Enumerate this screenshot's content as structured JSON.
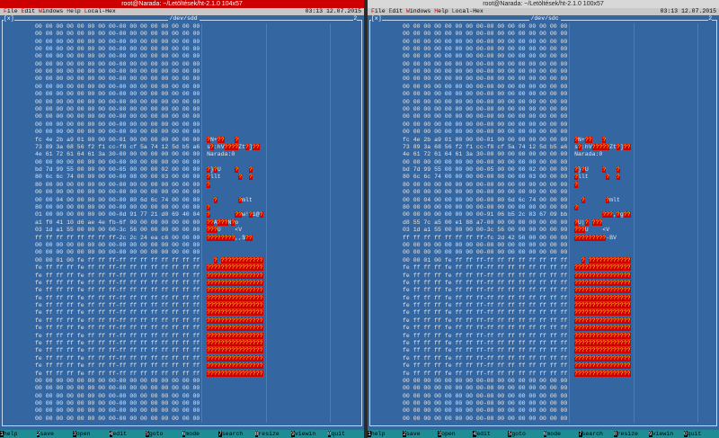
{
  "panes": [
    {
      "title": "root@Narada: ~/Letöltések/ht-2.1.0 104x57",
      "menu": [
        "File",
        "Edit",
        "Windows",
        "Help",
        "Local-Hex"
      ],
      "clock": "03:13 12.07.2015",
      "window_close": "[x]",
      "window_title": "/dev/sdd",
      "window_number": "2",
      "rows": [
        {
          "hex": "00 00 00 00 00 00 00 00-00 00 00 00 00 00 00 00"
        },
        {
          "hex": "00 00 00 00 00 00 00 00-00 00 00 00 00 00 00 00"
        },
        {
          "hex": "00 00 00 00 00 00 00 00-00 00 00 00 00 00 00 00"
        },
        {
          "hex": "00 00 00 00 00 00 00 00-00 00 00 00 00 00 00 00"
        },
        {
          "hex": "00 00 00 00 00 00 00 00-00 00 00 00 00 00 00 00"
        },
        {
          "hex": "00 00 00 00 00 00 00 00-00 00 00 00 00 00 00 00"
        },
        {
          "hex": "00 00 00 00 00 00 00 00-00 00 00 00 00 00 00 00"
        },
        {
          "hex": "00 00 00 00 00 00 00 00-00 00 00 00 00 00 00 00"
        },
        {
          "hex": "00 00 00 00 00 00 00 00-00 00 00 00 00 00 00 00"
        },
        {
          "hex": "00 00 00 00 00 00 00 00-00 00 00 00 00 00 00 00"
        },
        {
          "hex": "00 00 00 00 00 00 00 00-00 00 00 00 00 00 00 00"
        },
        {
          "hex": "00 00 00 00 00 00 00 00-00 00 00 00 00 00 00 00"
        },
        {
          "hex": "00 00 00 00 00 00 00 00-00 00 00 00 00 00 00 00"
        },
        {
          "hex": "00 00 00 00 00 00 00 00-00 00 00 00 00 00 00 00"
        },
        {
          "hex": "00 00 00 00 00 00 00 00-00 00 00 00 00 00 00 00"
        },
        {
          "hex": "fc 4e 2b a9 01 00 00 00-01 00 00 00 00 00 00 00",
          "ascii": "?N+??   ?"
        },
        {
          "hex": "73 89 3a 68 56 f2 f1 cc-f8 cf 5a 74 12 5d b5 a6",
          "ascii": "s?:hV????Zt?]??"
        },
        {
          "hex": "4e 61 72 61 64 61 3a 30-00 00 00 00 00 00 00 00",
          "ascii": "Narada:0"
        },
        {
          "hex": "00 00 00 00 00 00 00 00-00 00 00 00 00 00 00 00"
        },
        {
          "hex": "bd 7d 99 55 00 00 00 00-05 00 00 00 02 00 00 00",
          "ascii": "?}?U    ?   ?"
        },
        {
          "hex": "80 6c 6c 74 00 00 00 00-00 08 00 00 03 00 00 00",
          "ascii": "?llt     ?  ?"
        },
        {
          "hex": "80 00 00 00 00 00 00 00-00 00 00 00 00 00 00 00",
          "ascii": "?"
        },
        {
          "hex": "00 00 00 00 00 00 00 00-00 00 00 00 00 00 00 00"
        },
        {
          "hex": "00 00 04 00 00 00 00 00-00 80 6d 6c 74 00 00 00",
          "ascii": "  ?      ?mlt"
        },
        {
          "hex": "80 00 00 00 00 00 00 00-00 00 00 00 00 00 00 00",
          "ascii": "?"
        },
        {
          "hex": "01 00 00 00 00 00 00 00-0d 91 77 21 d0 69 40 04",
          "ascii": "?       ??w!?i@?"
        },
        {
          "hex": "a1 f0 41 10 d6 ae 4e fb-6f 00 00 00 00 00 00 00",
          "ascii": "??A???N?o"
        },
        {
          "hex": "03 1d a1 55 00 00 00 00-3c 56 00 00 00 00 00 00",
          "ascii": "???U    <V"
        },
        {
          "hex": "ff ff ff ff ff ff ff ff-2c 2c 24 ea c6 00 00 00",
          "ascii": "????????,,$??"
        },
        {
          "hex": "00 00 00 00 00 00 00 00-00 00 00 00 00 00 00 00"
        },
        {
          "hex": "00 00 00 00 00 00 00 00-00 00 00 00 00 00 00 00"
        },
        {
          "hex": "00 00 01 00 fe ff ff ff-ff ff ff ff ff ff ff ff",
          "ascii": "  ? ????????????"
        },
        {
          "hex": "fe ff ff ff fe ff ff ff-ff ff ff ff ff ff ff ff",
          "ascii": "????????????????"
        },
        {
          "hex": "fe ff ff ff fe ff ff ff-ff ff ff ff ff ff ff ff",
          "ascii": "????????????????"
        },
        {
          "hex": "fe ff ff ff fe ff ff ff-ff ff ff ff ff ff ff ff",
          "ascii": "????????????????"
        },
        {
          "hex": "fe ff ff ff fe ff ff ff-ff ff ff ff ff ff ff ff",
          "ascii": "????????????????"
        },
        {
          "hex": "fe ff ff ff fe ff ff ff-ff ff ff ff ff ff ff ff",
          "ascii": "????????????????"
        },
        {
          "hex": "fe ff ff ff fe ff ff ff-ff ff ff ff ff ff ff ff",
          "ascii": "????????????????"
        },
        {
          "hex": "fe ff ff ff fe ff ff ff-ff ff ff ff ff ff ff ff",
          "ascii": "????????????????"
        },
        {
          "hex": "fe ff ff ff fe ff ff ff-ff ff ff ff ff ff ff ff",
          "ascii": "????????????????"
        },
        {
          "hex": "fe ff ff ff fe ff ff ff-ff ff ff ff ff ff ff ff",
          "ascii": "????????????????"
        },
        {
          "hex": "fe ff ff ff fe ff ff ff-ff ff ff ff ff ff ff ff",
          "ascii": "????????????????"
        },
        {
          "hex": "fe ff ff ff fe ff ff ff-ff ff ff ff ff ff ff ff",
          "ascii": "????????????????"
        },
        {
          "hex": "fe ff ff ff fe ff ff ff-ff ff ff ff ff ff ff ff",
          "ascii": "????????????????"
        },
        {
          "hex": "fe ff ff ff fe ff ff ff-ff ff ff ff ff ff ff ff",
          "ascii": "????????????????"
        },
        {
          "hex": "fe ff ff ff fe ff ff ff-ff ff ff ff ff ff ff ff",
          "ascii": "????????????????"
        },
        {
          "hex": "fe ff ff ff fe ff ff ff-ff ff ff ff ff ff ff ff",
          "ascii": "????????????????"
        },
        {
          "hex": "00 00 00 00 00 00 00 00-00 00 00 00 00 00 00 00"
        },
        {
          "hex": "00 00 00 00 00 00 00 00-00 00 00 00 00 00 00 00"
        },
        {
          "hex": "00 00 00 00 00 00 00 00-00 00 00 00 00 00 00 00"
        },
        {
          "hex": "00 00 00 00 00 00 00 00-00 00 00 00 00 00 00 00"
        },
        {
          "hex": "00 00 00 00 00 00 00 00-00 00 00 00 00 00 00 00"
        },
        {
          "hex": "00 00 00 00 00 00 00 00-00 00 00 00 00 00 00 00"
        }
      ],
      "fkeys": [
        {
          "key": "1",
          "label": "help"
        },
        {
          "key": "2",
          "label": "save"
        },
        {
          "key": "3",
          "label": "open"
        },
        {
          "key": "4",
          "label": "edit"
        },
        {
          "key": "5",
          "label": "goto"
        },
        {
          "key": "6",
          "label": "mode"
        },
        {
          "key": "7",
          "label": "search"
        },
        {
          "key": "8",
          "label": "resize"
        },
        {
          "key": "9",
          "label": "viewin"
        },
        {
          "key": "0",
          "label": "quit"
        }
      ]
    },
    {
      "title": "root@Narada: ~/Letöltések/ht-2.1.0 100x57",
      "menu": [
        "File",
        "Edit",
        "Windows",
        "Help",
        "Local-Hex"
      ],
      "clock": "03:13 12.07.2015",
      "window_close": "[x]",
      "window_title": "/dev/sdc",
      "window_number": "2",
      "rows": [
        {
          "hex": "00 00 00 00 00 00 00 00-00 00 00 00 00 00 00 00"
        },
        {
          "hex": "00 00 00 00 00 00 00 00-00 00 00 00 00 00 00 00"
        },
        {
          "hex": "00 00 00 00 00 00 00 00-00 00 00 00 00 00 00 00"
        },
        {
          "hex": "00 00 00 00 00 00 00 00-00 00 00 00 00 00 00 00"
        },
        {
          "hex": "00 00 00 00 00 00 00 00-00 00 00 00 00 00 00 00"
        },
        {
          "hex": "00 00 00 00 00 00 00 00-00 00 00 00 00 00 00 00"
        },
        {
          "hex": "00 00 00 00 00 00 00 00-00 00 00 00 00 00 00 00"
        },
        {
          "hex": "00 00 00 00 00 00 00 00-00 00 00 00 00 00 00 00"
        },
        {
          "hex": "00 00 00 00 00 00 00 00-00 00 00 00 00 00 00 00"
        },
        {
          "hex": "00 00 00 00 00 00 00 00-00 00 00 00 00 00 00 00"
        },
        {
          "hex": "00 00 00 00 00 00 00 00-00 00 00 00 00 00 00 00"
        },
        {
          "hex": "00 00 00 00 00 00 00 00-00 00 00 00 00 00 00 00"
        },
        {
          "hex": "00 00 00 00 00 00 00 00-00 00 00 00 00 00 00 00"
        },
        {
          "hex": "00 00 00 00 00 00 00 00-00 00 00 00 00 00 00 00"
        },
        {
          "hex": "00 00 00 00 00 00 00 00-00 00 00 00 00 00 00 00"
        },
        {
          "hex": "fc 4e 2b a9 01 00 00 00-01 00 00 00 00 00 00 00",
          "ascii": "?N+??   ?"
        },
        {
          "hex": "73 89 3a 68 56 f2 f1 cc-f8 cf 5a 74 12 5d b5 a6",
          "ascii": "s?:hV?????Zt?]??"
        },
        {
          "hex": "4e 61 72 61 64 61 3a 30-00 00 00 00 00 00 00 00",
          "ascii": "Narada:0"
        },
        {
          "hex": "00 00 00 00 00 00 00 00-00 00 00 00 00 00 00 00"
        },
        {
          "hex": "bd 7d 99 55 00 00 00 00-05 00 00 00 02 00 00 00",
          "ascii": "?}?U    ?   ?"
        },
        {
          "hex": "80 6c 6c 74 00 00 00 00-00 08 00 00 03 00 00 00",
          "ascii": "?llt     ?  ?"
        },
        {
          "hex": "80 00 00 00 00 00 00 00-00 00 00 00 00 00 00 00",
          "ascii": "?"
        },
        {
          "hex": "00 00 00 00 00 00 00 00-00 00 00 00 00 00 00 00"
        },
        {
          "hex": "00 00 04 00 00 00 00 00-00 80 6d 6c 74 00 00 00",
          "ascii": "  ?      ?mlt"
        },
        {
          "hex": "80 00 00 00 00 00 00 00-00 00 00 00 00 00 00 00",
          "ascii": "?"
        },
        {
          "hex": "00 00 00 00 00 00 00 00-91 06 b5 2c 83 67 09 bb",
          "ascii": "        ???,?g??"
        },
        {
          "hex": "d8 55 7c a5 00 e1 88 a7-00 00 00 00 00 00 00 00",
          "ascii": "?U|? ???"
        },
        {
          "hex": "03 1d a1 55 00 00 00 00-3c 56 00 00 00 00 00 00",
          "ascii": "???U    <V"
        },
        {
          "hex": "ff ff ff ff ff ff ff ff-fc 2d 42 56 00 00 00 00",
          "ascii": "?????????-BV"
        },
        {
          "hex": "00 00 00 00 00 00 00 00-00 00 00 00 00 00 00 00"
        },
        {
          "hex": "00 00 00 00 00 00 00 00-00 00 00 00 00 00 00 00"
        },
        {
          "hex": "00 00 01 00 fe ff ff ff-ff ff ff ff ff ff ff ff",
          "ascii": "  ? ????????????"
        },
        {
          "hex": "fe ff ff ff fe ff ff ff-ff ff ff ff ff ff ff ff",
          "ascii": "????????????????"
        },
        {
          "hex": "fe ff ff ff fe ff ff ff-ff ff ff ff ff ff ff ff",
          "ascii": "????????????????"
        },
        {
          "hex": "fe ff ff ff fe ff ff ff-ff ff ff ff ff ff ff ff",
          "ascii": "????????????????"
        },
        {
          "hex": "fe ff ff ff fe ff ff ff-ff ff ff ff ff ff ff ff",
          "ascii": "????????????????"
        },
        {
          "hex": "fe ff ff ff fe ff ff ff-ff ff ff ff ff ff ff ff",
          "ascii": "????????????????"
        },
        {
          "hex": "fe ff ff ff fe ff ff ff-ff ff ff ff ff ff ff ff",
          "ascii": "????????????????"
        },
        {
          "hex": "fe ff ff ff fe ff ff ff-ff ff ff ff ff ff ff ff",
          "ascii": "????????????????"
        },
        {
          "hex": "fe ff ff ff fe ff ff ff-ff ff ff ff ff ff ff ff",
          "ascii": "????????????????"
        },
        {
          "hex": "fe ff ff ff fe ff ff ff-ff ff ff ff ff ff ff ff",
          "ascii": "????????????????"
        },
        {
          "hex": "fe ff ff ff fe ff ff ff-ff ff ff ff ff ff ff ff",
          "ascii": "????????????????"
        },
        {
          "hex": "fe ff ff ff fe ff ff ff-ff ff ff ff ff ff ff ff",
          "ascii": "????????????????"
        },
        {
          "hex": "fe ff ff ff fe ff ff ff-ff ff ff ff ff ff ff ff",
          "ascii": "????????????????"
        },
        {
          "hex": "fe ff ff ff fe ff ff ff-ff ff ff ff ff ff ff ff",
          "ascii": "????????????????"
        },
        {
          "hex": "fe ff ff ff fe ff ff ff-ff ff ff ff ff ff ff ff",
          "ascii": "????????????????"
        },
        {
          "hex": "fe ff ff ff fe ff ff ff-ff ff ff ff ff ff ff ff",
          "ascii": "????????????????"
        },
        {
          "hex": "00 00 00 00 00 00 00 00-00 00 00 00 00 00 00 00"
        },
        {
          "hex": "00 00 00 00 00 00 00 00-00 00 00 00 00 00 00 00"
        },
        {
          "hex": "00 00 00 00 00 00 00 00-00 00 00 00 00 00 00 00"
        },
        {
          "hex": "00 00 00 00 00 00 00 00-00 00 00 00 00 00 00 00"
        },
        {
          "hex": "00 00 00 00 00 00 00 00-00 00 00 00 00 00 00 00"
        },
        {
          "hex": "00 00 00 00 00 00 00 00-00 00 00 00 00 00 00 00"
        }
      ],
      "fkeys": [
        {
          "key": "1",
          "label": "help"
        },
        {
          "key": "2",
          "label": "save"
        },
        {
          "key": "3",
          "label": "open"
        },
        {
          "key": "4",
          "label": "edit"
        },
        {
          "key": "5",
          "label": "goto"
        },
        {
          "key": "6",
          "label": "mode"
        },
        {
          "key": "7",
          "label": "search"
        },
        {
          "key": "8",
          "label": "resize"
        },
        {
          "key": "9",
          "label": "viewin"
        },
        {
          "key": "0",
          "label": "quit"
        }
      ]
    }
  ]
}
